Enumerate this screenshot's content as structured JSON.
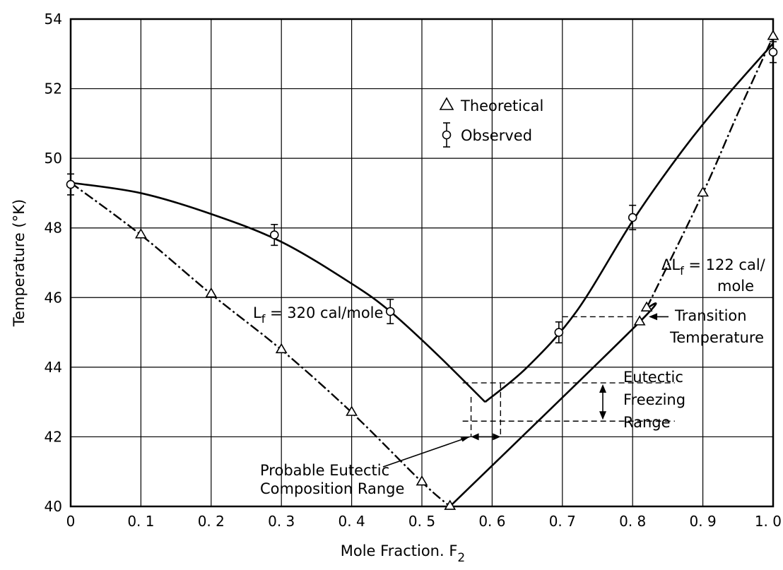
{
  "chart_data": {
    "type": "line",
    "title": "",
    "xlabel": "Mole Fraction. F",
    "xlabel_subscript": "2",
    "ylabel": "Temperature (°K)",
    "xlim": [
      0,
      1.0
    ],
    "ylim": [
      40,
      54
    ],
    "grid": true,
    "x_ticks": [
      0,
      0.1,
      0.2,
      0.3,
      0.4,
      0.5,
      0.6,
      0.7,
      0.8,
      0.9,
      1.0
    ],
    "x_tick_labels": [
      "0",
      "0. 1",
      "0. 2",
      "0. 3",
      "0. 4",
      "0. 5",
      "0. 6",
      "0. 7",
      "0. 8",
      "0. 9",
      "1. 0"
    ],
    "y_ticks": [
      40,
      42,
      44,
      46,
      48,
      50,
      52,
      54
    ],
    "y_tick_labels": [
      "40",
      "42",
      "44",
      "46",
      "48",
      "50",
      "52",
      "54"
    ],
    "legend": {
      "position": "top-center",
      "entries": [
        {
          "marker": "triangle",
          "label": "Theoretical"
        },
        {
          "marker": "circle-errorbar",
          "label": "Observed"
        }
      ]
    },
    "series": [
      {
        "name": "Theoretical",
        "marker": "triangle",
        "points": [
          {
            "x": 0.1,
            "y": 47.8
          },
          {
            "x": 0.2,
            "y": 46.1
          },
          {
            "x": 0.3,
            "y": 44.5
          },
          {
            "x": 0.4,
            "y": 42.7
          },
          {
            "x": 0.5,
            "y": 40.7
          },
          {
            "x": 0.54,
            "y": 40.0
          },
          {
            "x": 0.81,
            "y": 45.3
          },
          {
            "x": 0.82,
            "y": 45.7
          },
          {
            "x": 0.9,
            "y": 49.0
          },
          {
            "x": 1.0,
            "y": 53.5
          }
        ]
      },
      {
        "name": "Observed",
        "marker": "circle",
        "points": [
          {
            "x": 0.0,
            "y": 49.25,
            "err": 0.3
          },
          {
            "x": 0.29,
            "y": 47.8,
            "err": 0.3
          },
          {
            "x": 0.455,
            "y": 45.6,
            "err": 0.35
          },
          {
            "x": 0.695,
            "y": 45.0,
            "err": 0.3
          },
          {
            "x": 0.8,
            "y": 48.3,
            "err": 0.35
          },
          {
            "x": 1.0,
            "y": 53.05,
            "err": 0.3
          }
        ]
      }
    ],
    "curves": [
      {
        "style": "dashdot",
        "points": [
          [
            0,
            49.3
          ],
          [
            0.1,
            47.8
          ],
          [
            0.2,
            46.1
          ],
          [
            0.3,
            44.5
          ],
          [
            0.4,
            42.7
          ],
          [
            0.5,
            40.7
          ],
          [
            0.54,
            40.0
          ]
        ]
      },
      {
        "style": "solid",
        "points": [
          [
            0.54,
            40.0
          ],
          [
            0.81,
            45.3
          ],
          [
            0.82,
            45.7
          ]
        ]
      },
      {
        "style": "dashdot",
        "points": [
          [
            0.82,
            45.7
          ],
          [
            0.9,
            49.0
          ],
          [
            0.95,
            51.3
          ],
          [
            1.0,
            53.5
          ]
        ]
      },
      {
        "style": "solid",
        "points": [
          [
            0,
            49.3
          ],
          [
            0.1,
            49.0
          ],
          [
            0.2,
            48.4
          ],
          [
            0.3,
            47.6
          ],
          [
            0.4,
            46.4
          ],
          [
            0.455,
            45.6
          ],
          [
            0.52,
            44.4
          ],
          [
            0.59,
            43.0
          ]
        ]
      },
      {
        "style": "solid",
        "points": [
          [
            0.59,
            43.0
          ],
          [
            0.65,
            44.0
          ],
          [
            0.72,
            45.6
          ],
          [
            0.8,
            48.2
          ],
          [
            0.87,
            50.2
          ],
          [
            0.93,
            51.7
          ],
          [
            1.0,
            53.3
          ]
        ]
      }
    ],
    "annotations": {
      "lf_left": "L",
      "lf_left_sub": "f",
      "lf_left_rest": " = 320 cal/mole",
      "lf_right_delta": "Δ",
      "lf_right": "L",
      "lf_right_sub": "f",
      "lf_right_rest": " = 122 cal/",
      "lf_right_line2": "mole",
      "transition_line1": "Transition",
      "transition_line2": "Temperature",
      "transition_temperature": 45.45,
      "eutectic_line1": "Eutectic",
      "eutectic_line2": "Freezing",
      "eutectic_line3": "Range",
      "eutectic_freezing_range": [
        42.45,
        43.55
      ],
      "probable_line1": "Probable Eutectic",
      "probable_line2": "Composition Range",
      "probable_composition_range": [
        0.57,
        0.612
      ]
    }
  }
}
